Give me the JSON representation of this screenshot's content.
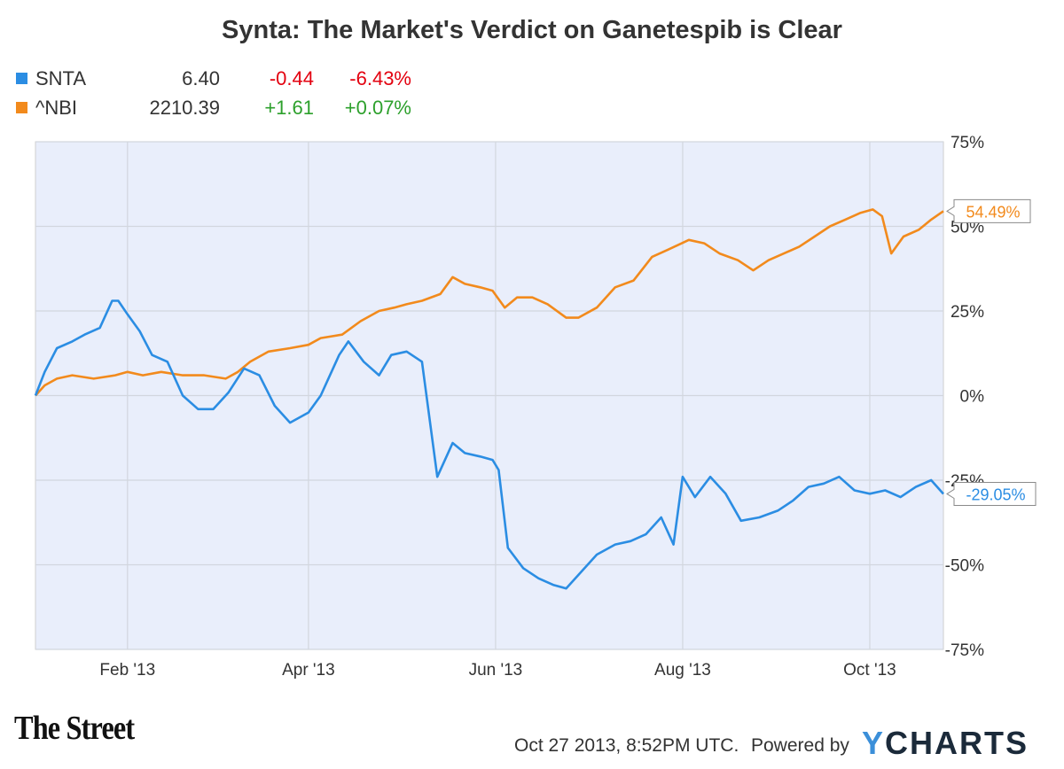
{
  "title": "Synta: The Market's Verdict on Ganetespib is Clear",
  "legend": [
    {
      "name": "SNTA",
      "value": "6.40",
      "change": "-0.44",
      "pct": "-6.43%",
      "color": "#2b8de3",
      "direction": "negative"
    },
    {
      "name": "^NBI",
      "value": "2210.39",
      "change": "+1.61",
      "pct": "+0.07%",
      "color": "#f28a1c",
      "direction": "positive"
    }
  ],
  "footer": {
    "brand": "The Street",
    "timestamp": "Oct 27 2013, 8:52PM UTC.",
    "powered_by": "Powered by",
    "logo_y": "Y",
    "logo_rest": "CHARTS"
  },
  "chart_data": {
    "type": "line",
    "title": "Synta: The Market's Verdict on Ganetespib is Clear",
    "xlabel": "",
    "ylabel": "",
    "xlim": [
      "2013-01-02",
      "2013-10-25"
    ],
    "ylim": [
      -75,
      75
    ],
    "y_ticks": [
      75,
      50,
      25,
      0,
      -25,
      -50,
      -75
    ],
    "y_tick_labels": [
      "75%",
      "50%",
      "25%",
      "0%",
      "-25%",
      "-50%",
      "-75%"
    ],
    "x_ticks": [
      "2013-02-01",
      "2013-04-01",
      "2013-06-01",
      "2013-08-01",
      "2013-10-01"
    ],
    "x_tick_labels": [
      "Feb '13",
      "Apr '13",
      "Jun '13",
      "Aug '13",
      "Oct '13"
    ],
    "grid": true,
    "legend_position": "top-left",
    "series": [
      {
        "name": "^NBI",
        "color": "#f28a1c",
        "end_label": "54.49%",
        "points": [
          [
            "2013-01-02",
            0
          ],
          [
            "2013-01-05",
            3
          ],
          [
            "2013-01-09",
            5
          ],
          [
            "2013-01-14",
            6
          ],
          [
            "2013-01-21",
            5
          ],
          [
            "2013-01-28",
            6
          ],
          [
            "2013-02-01",
            7
          ],
          [
            "2013-02-06",
            6
          ],
          [
            "2013-02-12",
            7
          ],
          [
            "2013-02-19",
            6
          ],
          [
            "2013-02-26",
            6
          ],
          [
            "2013-03-05",
            5
          ],
          [
            "2013-03-09",
            7
          ],
          [
            "2013-03-13",
            10
          ],
          [
            "2013-03-19",
            13
          ],
          [
            "2013-03-26",
            14
          ],
          [
            "2013-04-01",
            15
          ],
          [
            "2013-04-05",
            17
          ],
          [
            "2013-04-12",
            18
          ],
          [
            "2013-04-18",
            22
          ],
          [
            "2013-04-24",
            25
          ],
          [
            "2013-04-29",
            26
          ],
          [
            "2013-05-03",
            27
          ],
          [
            "2013-05-08",
            28
          ],
          [
            "2013-05-14",
            30
          ],
          [
            "2013-05-18",
            35
          ],
          [
            "2013-05-22",
            33
          ],
          [
            "2013-05-27",
            32
          ],
          [
            "2013-05-31",
            31
          ],
          [
            "2013-06-04",
            26
          ],
          [
            "2013-06-08",
            29
          ],
          [
            "2013-06-13",
            29
          ],
          [
            "2013-06-18",
            27
          ],
          [
            "2013-06-24",
            23
          ],
          [
            "2013-06-28",
            23
          ],
          [
            "2013-07-04",
            26
          ],
          [
            "2013-07-10",
            32
          ],
          [
            "2013-07-16",
            34
          ],
          [
            "2013-07-22",
            41
          ],
          [
            "2013-07-27",
            43
          ],
          [
            "2013-08-03",
            46
          ],
          [
            "2013-08-08",
            45
          ],
          [
            "2013-08-13",
            42
          ],
          [
            "2013-08-19",
            40
          ],
          [
            "2013-08-24",
            37
          ],
          [
            "2013-08-29",
            40
          ],
          [
            "2013-09-03",
            42
          ],
          [
            "2013-09-08",
            44
          ],
          [
            "2013-09-13",
            47
          ],
          [
            "2013-09-18",
            50
          ],
          [
            "2013-09-23",
            52
          ],
          [
            "2013-09-28",
            54
          ],
          [
            "2013-10-02",
            55
          ],
          [
            "2013-10-05",
            53
          ],
          [
            "2013-10-08",
            42
          ],
          [
            "2013-10-12",
            47
          ],
          [
            "2013-10-17",
            49
          ],
          [
            "2013-10-21",
            52
          ],
          [
            "2013-10-25",
            54.49
          ]
        ]
      },
      {
        "name": "SNTA",
        "color": "#2b8de3",
        "end_label": "-29.05%",
        "points": [
          [
            "2013-01-02",
            0
          ],
          [
            "2013-01-05",
            7
          ],
          [
            "2013-01-09",
            14
          ],
          [
            "2013-01-14",
            16
          ],
          [
            "2013-01-18",
            18
          ],
          [
            "2013-01-23",
            20
          ],
          [
            "2013-01-27",
            28
          ],
          [
            "2013-01-29",
            28
          ],
          [
            "2013-02-01",
            24
          ],
          [
            "2013-02-05",
            19
          ],
          [
            "2013-02-09",
            12
          ],
          [
            "2013-02-14",
            10
          ],
          [
            "2013-02-19",
            0
          ],
          [
            "2013-02-24",
            -4
          ],
          [
            "2013-03-01",
            -4
          ],
          [
            "2013-03-06",
            1
          ],
          [
            "2013-03-11",
            8
          ],
          [
            "2013-03-16",
            6
          ],
          [
            "2013-03-21",
            -3
          ],
          [
            "2013-03-26",
            -8
          ],
          [
            "2013-04-01",
            -5
          ],
          [
            "2013-04-05",
            0
          ],
          [
            "2013-04-11",
            12
          ],
          [
            "2013-04-14",
            16
          ],
          [
            "2013-04-19",
            10
          ],
          [
            "2013-04-24",
            6
          ],
          [
            "2013-04-28",
            12
          ],
          [
            "2013-05-03",
            13
          ],
          [
            "2013-05-08",
            10
          ],
          [
            "2013-05-13",
            -24
          ],
          [
            "2013-05-18",
            -14
          ],
          [
            "2013-05-22",
            -17
          ],
          [
            "2013-05-27",
            -18
          ],
          [
            "2013-05-31",
            -19
          ],
          [
            "2013-06-02",
            -22
          ],
          [
            "2013-06-05",
            -45
          ],
          [
            "2013-06-10",
            -51
          ],
          [
            "2013-06-15",
            -54
          ],
          [
            "2013-06-20",
            -56
          ],
          [
            "2013-06-24",
            -57
          ],
          [
            "2013-06-29",
            -52
          ],
          [
            "2013-07-04",
            -47
          ],
          [
            "2013-07-10",
            -44
          ],
          [
            "2013-07-15",
            -43
          ],
          [
            "2013-07-20",
            -41
          ],
          [
            "2013-07-25",
            -36
          ],
          [
            "2013-07-29",
            -44
          ],
          [
            "2013-08-01",
            -24
          ],
          [
            "2013-08-05",
            -30
          ],
          [
            "2013-08-10",
            -24
          ],
          [
            "2013-08-15",
            -29
          ],
          [
            "2013-08-20",
            -37
          ],
          [
            "2013-08-26",
            -36
          ],
          [
            "2013-09-01",
            -34
          ],
          [
            "2013-09-06",
            -31
          ],
          [
            "2013-09-11",
            -27
          ],
          [
            "2013-09-16",
            -26
          ],
          [
            "2013-09-21",
            -24
          ],
          [
            "2013-09-26",
            -28
          ],
          [
            "2013-10-01",
            -29
          ],
          [
            "2013-10-06",
            -28
          ],
          [
            "2013-10-11",
            -30
          ],
          [
            "2013-10-16",
            -27
          ],
          [
            "2013-10-21",
            -25
          ],
          [
            "2013-10-25",
            -29.05
          ]
        ]
      }
    ]
  }
}
